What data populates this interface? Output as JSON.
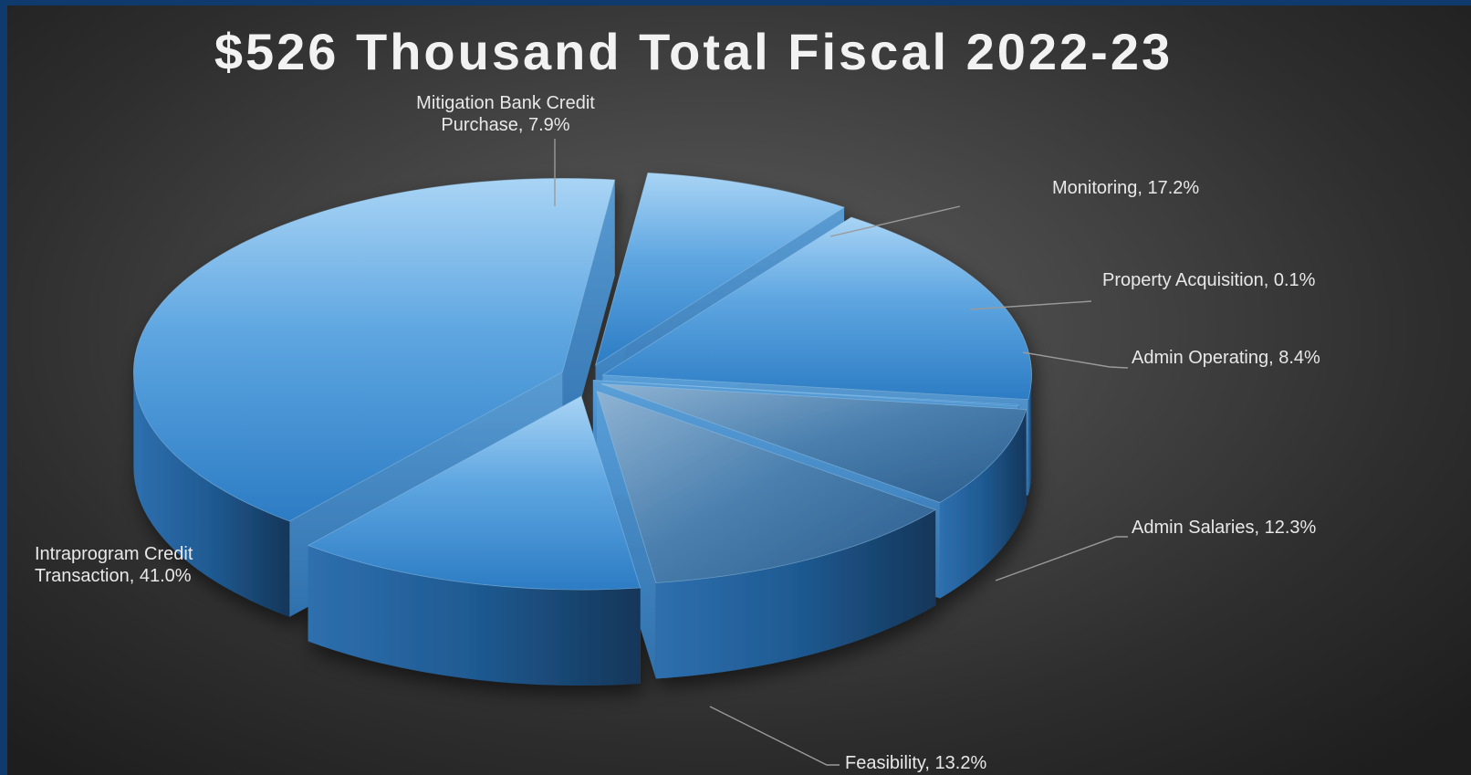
{
  "chart_data": {
    "type": "pie",
    "title": "$526 Thousand Total Fiscal 2022-23",
    "slices": [
      {
        "name": "Mitigation Bank Credit Purchase",
        "value": 7.9,
        "label_lines": [
          "Mitigation Bank Credit",
          "Purchase, 7.9%"
        ]
      },
      {
        "name": "Monitoring",
        "value": 17.2,
        "label_lines": [
          "Monitoring, 17.2%"
        ]
      },
      {
        "name": "Property Acquisition",
        "value": 0.1,
        "label_lines": [
          "Property Acquisition, 0.1%"
        ]
      },
      {
        "name": "Admin Operating",
        "value": 8.4,
        "label_lines": [
          "Admin Operating, 8.4%"
        ]
      },
      {
        "name": "Admin Salaries",
        "value": 12.3,
        "label_lines": [
          "Admin Salaries, 12.3%"
        ]
      },
      {
        "name": "Feasibility",
        "value": 13.2,
        "label_lines": [
          "Feasibility, 13.2%"
        ]
      },
      {
        "name": "Intraprogram Credit Transaction",
        "value": 41.0,
        "label_lines": [
          "Intraprogram Credit",
          "Transaction, 41.0%"
        ]
      }
    ],
    "colors": {
      "top_light": "#a7d2f4",
      "top_mid": "#5aa3e0",
      "top_dark": "#2f7fc6",
      "side_light": "#3d82c4",
      "side_dark": "#163a5e",
      "leader": "#9a9a9a",
      "background": "#4a4a4a",
      "frame": "#0f3a6e"
    }
  }
}
